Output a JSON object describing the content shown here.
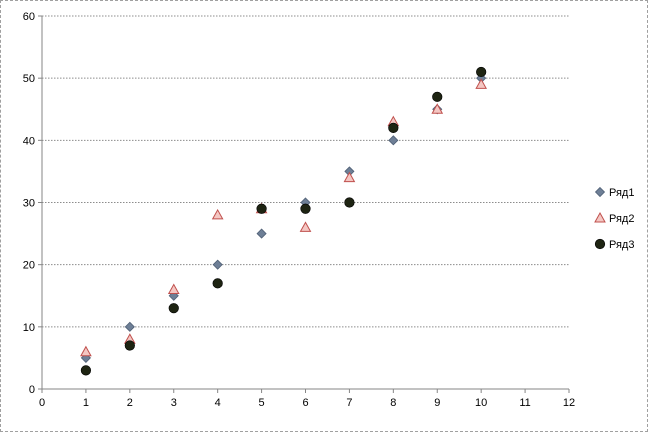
{
  "chart_data": {
    "type": "scatter",
    "title": "",
    "xlabel": "",
    "ylabel": "",
    "xlim": [
      0,
      12
    ],
    "ylim": [
      0,
      60
    ],
    "x_ticks": [
      0,
      1,
      2,
      3,
      4,
      5,
      6,
      7,
      8,
      9,
      10,
      11,
      12
    ],
    "y_ticks": [
      0,
      10,
      20,
      30,
      40,
      50,
      60
    ],
    "grid": "horizontal",
    "legend_position": "right",
    "series": [
      {
        "name": "Ряд1",
        "marker": "diamond",
        "color": "#6e7f96",
        "points": [
          [
            1,
            5
          ],
          [
            2,
            10
          ],
          [
            3,
            15
          ],
          [
            4,
            20
          ],
          [
            5,
            25
          ],
          [
            6,
            30
          ],
          [
            7,
            35
          ],
          [
            8,
            40
          ],
          [
            9,
            45
          ],
          [
            10,
            50
          ]
        ]
      },
      {
        "name": "Ряд2",
        "marker": "triangle",
        "color": "#f4c7c3",
        "stroke": "#c0504d",
        "points": [
          [
            1,
            6
          ],
          [
            2,
            8
          ],
          [
            3,
            16
          ],
          [
            4,
            28
          ],
          [
            5,
            29
          ],
          [
            6,
            26
          ],
          [
            7,
            34
          ],
          [
            8,
            43
          ],
          [
            9,
            45
          ],
          [
            10,
            49
          ]
        ]
      },
      {
        "name": "Ряд3",
        "marker": "circle",
        "color": "#1e2412",
        "points": [
          [
            1,
            3
          ],
          [
            2,
            7
          ],
          [
            3,
            13
          ],
          [
            4,
            17
          ],
          [
            5,
            29
          ],
          [
            6,
            29
          ],
          [
            7,
            30
          ],
          [
            8,
            42
          ],
          [
            9,
            47
          ],
          [
            10,
            51
          ]
        ]
      }
    ]
  }
}
